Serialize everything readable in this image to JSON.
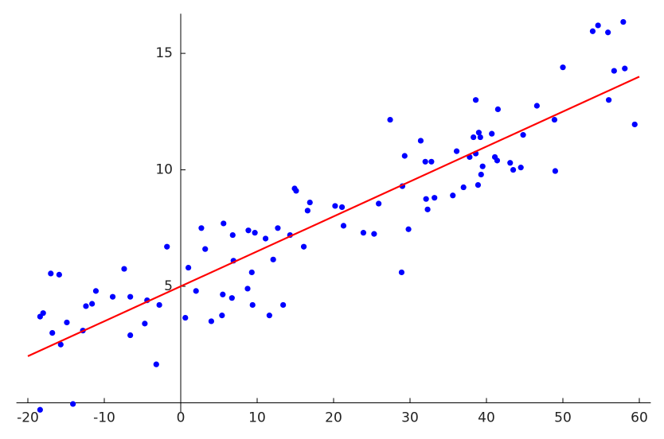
{
  "chart_data": {
    "type": "scatter",
    "xlim": [
      -21.5,
      61.5
    ],
    "ylim": [
      -0.4,
      16.7
    ],
    "xticks": [
      -20,
      -10,
      0,
      10,
      20,
      30,
      40,
      50,
      60
    ],
    "yticks": [
      5,
      10,
      15
    ],
    "grid": false,
    "series": [
      {
        "type": "scatter",
        "color": "#0000ff",
        "x": [
          -18.4,
          -14.1,
          -18.4,
          -18,
          -17,
          -15.9,
          -16.8,
          -15.7,
          -14.9,
          -12.8,
          -12.4,
          -11.6,
          -11.1,
          -8.9,
          -7.4,
          -6.6,
          -6.6,
          -4.7,
          -4.4,
          -3.2,
          -2.8,
          -1.8,
          0.6,
          1.0,
          2.0,
          2.7,
          3.2,
          4.0,
          5.4,
          5.6,
          5.5,
          6.7,
          6.8,
          6.9,
          8.75,
          8.85,
          9.3,
          9.4,
          9.7,
          11.1,
          11.6,
          12.1,
          12.7,
          13.4,
          14.3,
          14.9,
          15.1,
          16.1,
          16.6,
          16.9,
          20.2,
          21.1,
          21.3,
          23.9,
          25.3,
          25.9,
          27.4,
          28.9,
          29.0,
          29.3,
          29.8,
          31.4,
          32.0,
          32.1,
          32.3,
          32.8,
          33.2,
          35.6,
          36.1,
          37.0,
          37.8,
          38.3,
          38.6,
          38.6,
          38.9,
          39.0,
          39.2,
          39.3,
          39.5,
          40.7,
          41.1,
          41.4,
          41.5,
          43.1,
          43.5,
          44.5,
          44.8,
          46.6,
          48.9,
          49.0,
          50.0,
          53.9,
          54.6,
          55.9,
          56.0,
          56.7,
          57.9,
          58.1,
          59.4
        ],
        "values": [
          -0.3,
          -0.05,
          3.7,
          3.85,
          5.55,
          5.5,
          3.0,
          2.5,
          3.45,
          3.1,
          4.15,
          4.25,
          4.8,
          4.55,
          5.75,
          4.55,
          2.9,
          3.4,
          4.4,
          1.65,
          4.2,
          6.7,
          3.65,
          5.8,
          4.8,
          7.5,
          6.6,
          3.5,
          3.75,
          7.7,
          4.65,
          4.5,
          7.2,
          6.1,
          4.9,
          7.4,
          5.6,
          4.2,
          7.3,
          7.05,
          3.75,
          6.15,
          7.5,
          4.2,
          7.2,
          9.2,
          9.1,
          6.7,
          8.25,
          8.6,
          8.45,
          8.4,
          7.6,
          7.3,
          7.25,
          8.55,
          12.15,
          5.6,
          9.3,
          10.6,
          7.45,
          11.25,
          10.35,
          8.75,
          8.3,
          10.35,
          8.8,
          8.9,
          10.8,
          9.25,
          10.55,
          11.4,
          13.0,
          10.7,
          9.35,
          11.6,
          11.4,
          9.8,
          10.15,
          11.55,
          10.55,
          10.4,
          12.6,
          10.3,
          10.0,
          10.1,
          11.5,
          12.75,
          12.15,
          9.95,
          14.4,
          15.95,
          16.2,
          15.9,
          13.0,
          14.25,
          16.35,
          14.35,
          11.95
        ]
      },
      {
        "type": "line",
        "color": "#ff0000",
        "x": [
          -20,
          60
        ],
        "values": [
          2,
          14
        ]
      }
    ]
  }
}
